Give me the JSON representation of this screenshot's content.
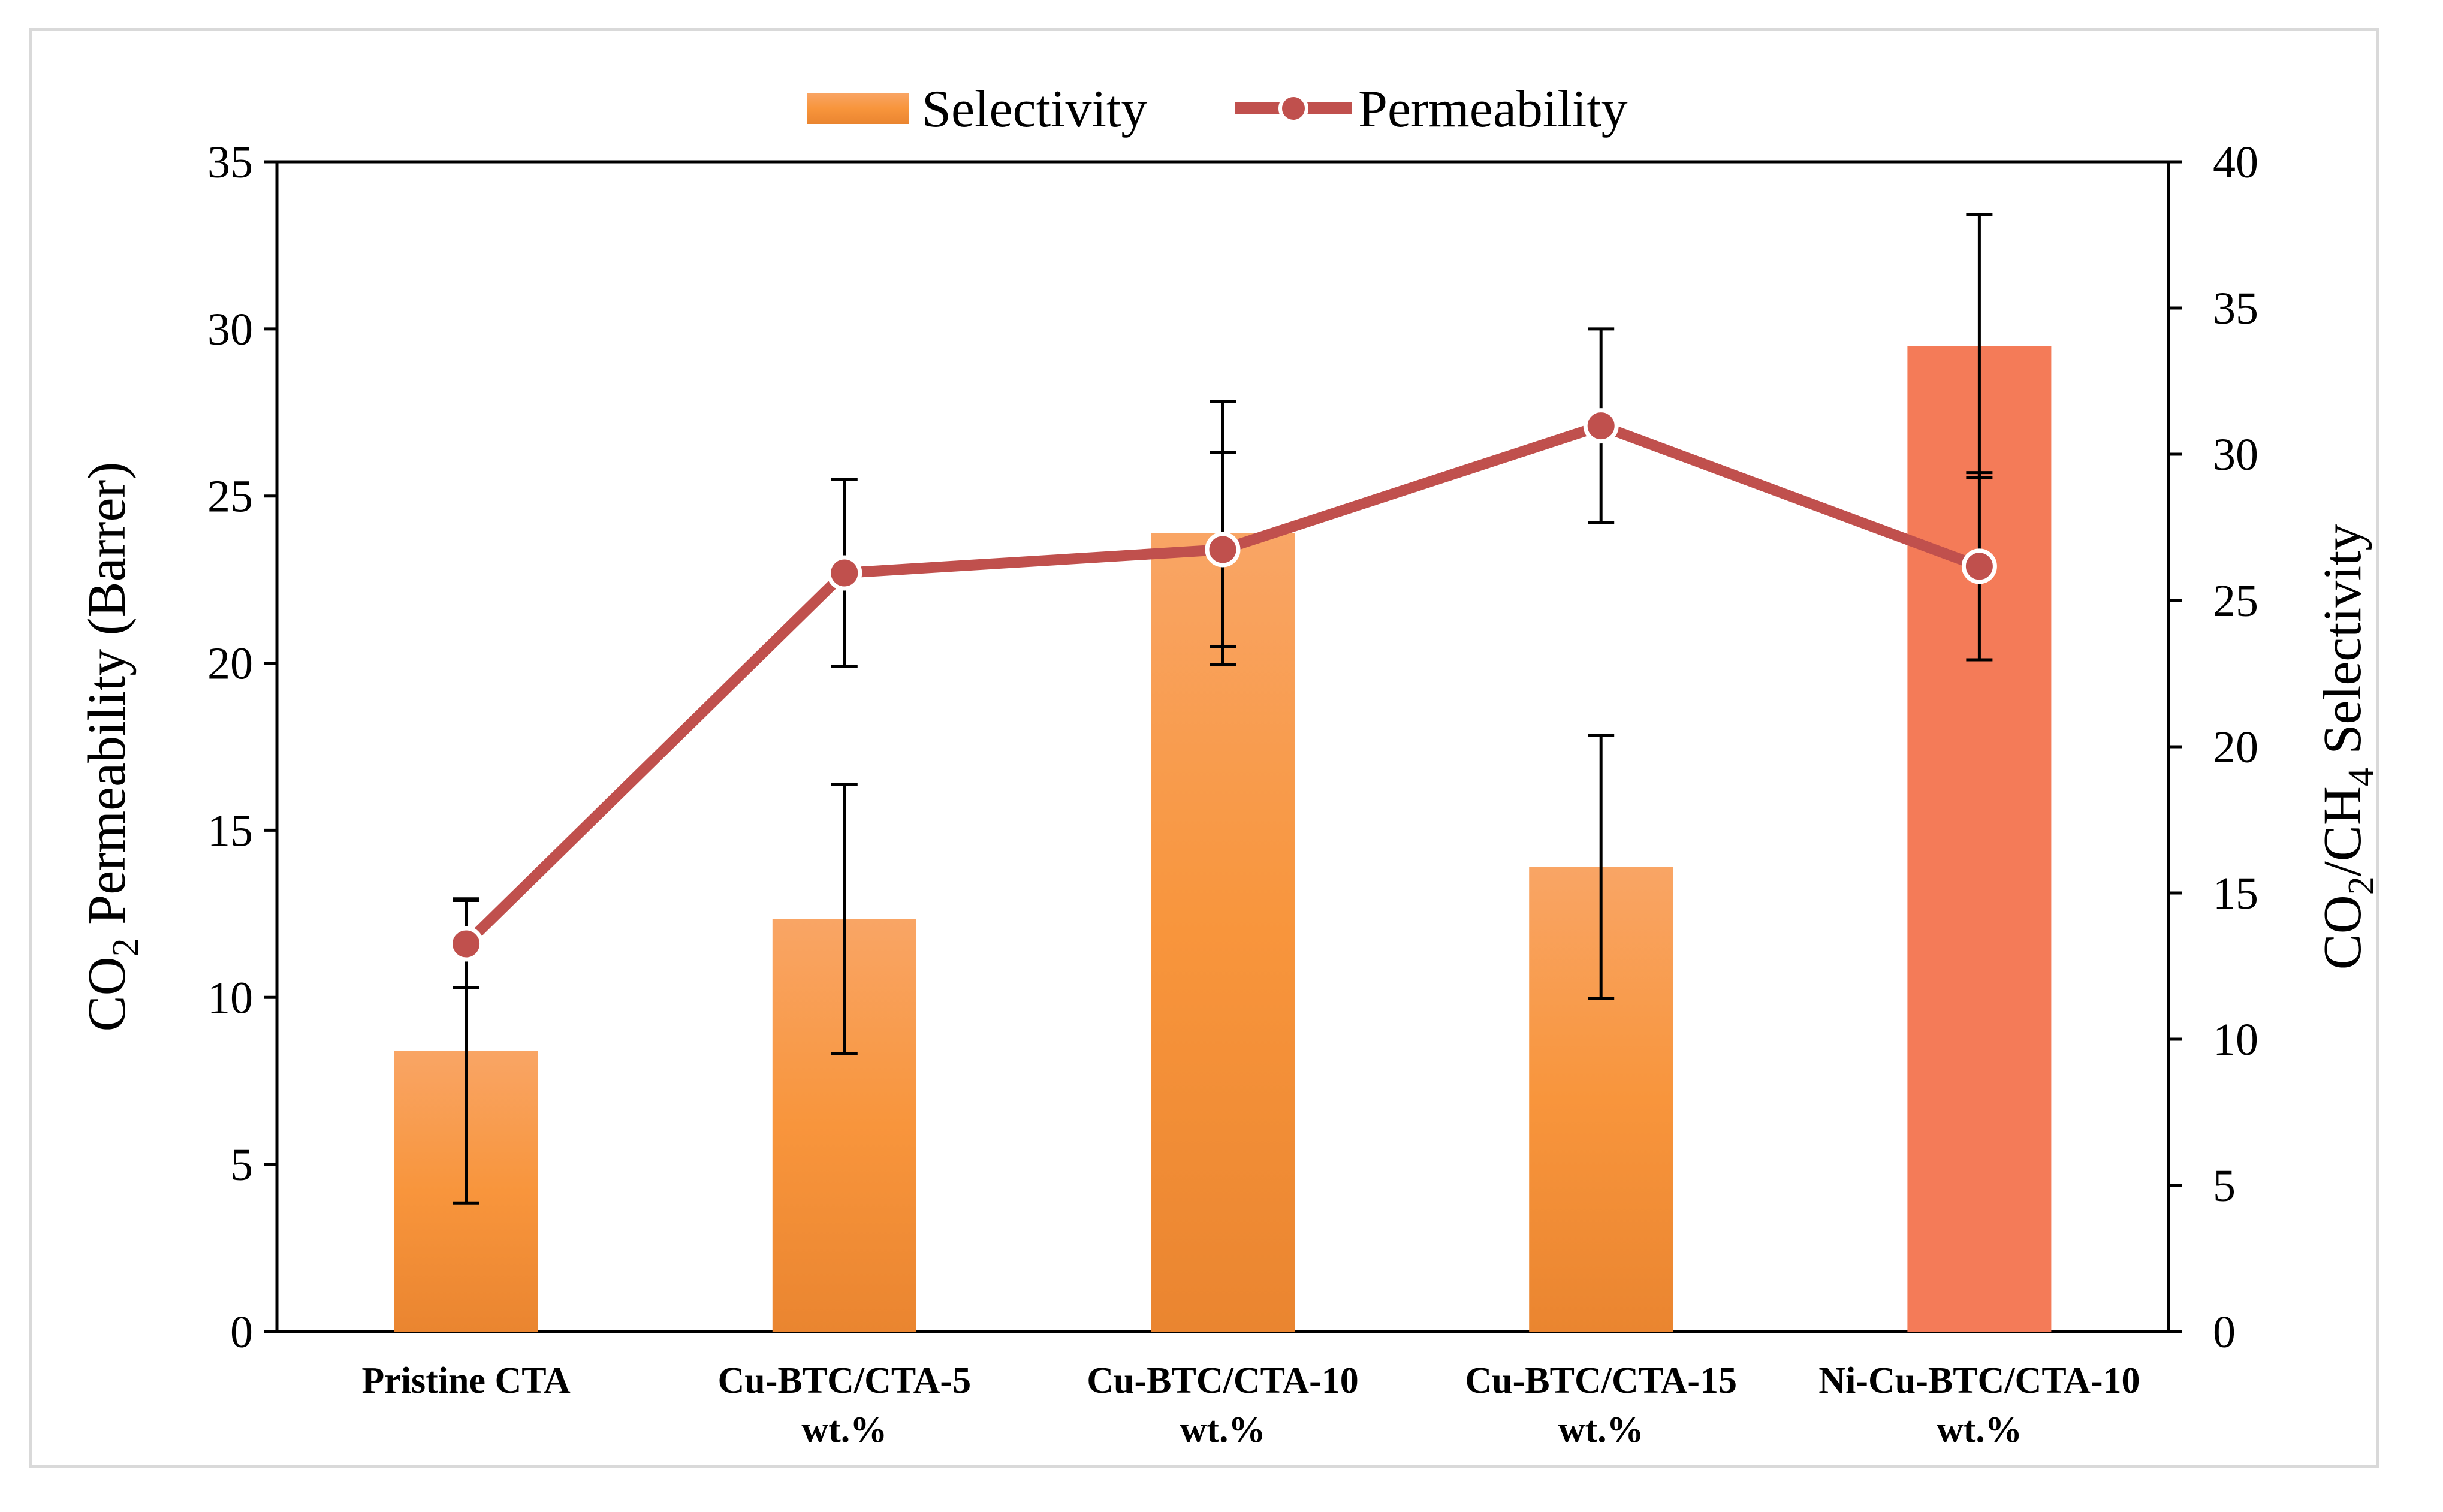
{
  "chart_data": {
    "type": "bar",
    "categories": [
      [
        "Pristine CTA"
      ],
      [
        "Cu-BTC/CTA-5",
        "wt.%"
      ],
      [
        "Cu-BTC/CTA-10",
        "wt.%"
      ],
      [
        "Cu-BTC/CTA-15",
        "wt.%"
      ],
      [
        "Ni-Cu-BTC/CTA-10",
        "wt.%"
      ]
    ],
    "series": [
      {
        "name": "Selectivity",
        "kind": "bar",
        "axis": "right",
        "values": [
          9.6,
          14.1,
          27.3,
          15.9,
          33.7
        ],
        "error": [
          5.2,
          4.6,
          4.5,
          4.5,
          4.5
        ],
        "colors": [
          "#f7953a",
          "#f7953a",
          "#f7953a",
          "#f7953a",
          "#f47b58"
        ]
      },
      {
        "name": "Permeability",
        "kind": "line",
        "axis": "left",
        "values": [
          11.6,
          22.7,
          23.4,
          27.1,
          22.9
        ],
        "error": [
          1.3,
          2.8,
          2.9,
          2.9,
          2.8
        ],
        "color": "#c0504d"
      }
    ],
    "left_axis": {
      "label_main": "CO",
      "label_sub": "2",
      "label_rest": " Permeability (Barrer)",
      "ylim": [
        0,
        35
      ],
      "ticks": [
        "0",
        "5",
        "10",
        "15",
        "20",
        "25",
        "30",
        "35"
      ]
    },
    "right_axis": {
      "label_a": "CO",
      "label_a_sub": "2",
      "label_b": "/CH",
      "label_b_sub": "4",
      "label_rest": " Selectivity",
      "ylim": [
        0,
        40
      ],
      "ticks": [
        "0",
        "5",
        "10",
        "15",
        "20",
        "25",
        "30",
        "35",
        "40"
      ]
    },
    "legend": {
      "position": "top-center",
      "items": [
        "Selectivity",
        "Permeability"
      ]
    }
  }
}
